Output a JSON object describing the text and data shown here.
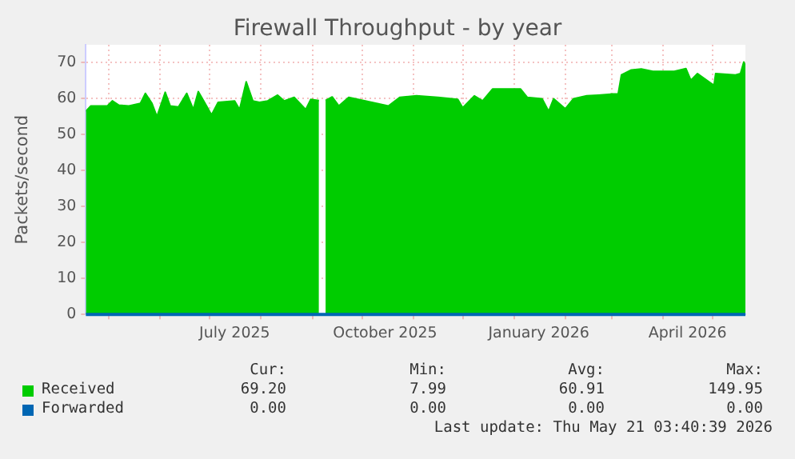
{
  "chart_data": {
    "type": "area",
    "title": "Firewall Throughput - by year",
    "ylabel": "Packets/second",
    "xlim": [
      "2025-04-17",
      "2026-05-21"
    ],
    "xticks": [
      {
        "value": "2025-05-01",
        "label": null
      },
      {
        "value": "2025-06-01",
        "label": null
      },
      {
        "value": "2025-07-01",
        "label": null
      },
      {
        "value": "2025-07-16",
        "label": "July 2025"
      },
      {
        "value": "2025-08-01",
        "label": null
      },
      {
        "value": "2025-09-01",
        "label": null
      },
      {
        "value": "2025-10-01",
        "label": null
      },
      {
        "value": "2025-10-15",
        "label": "October 2025"
      },
      {
        "value": "2025-11-01",
        "label": null
      },
      {
        "value": "2025-12-01",
        "label": null
      },
      {
        "value": "2026-01-01",
        "label": null
      },
      {
        "value": "2026-01-16",
        "label": "January 2026"
      },
      {
        "value": "2026-02-01",
        "label": null
      },
      {
        "value": "2026-03-01",
        "label": null
      },
      {
        "value": "2026-04-01",
        "label": null
      },
      {
        "value": "2026-04-16",
        "label": "April 2026"
      },
      {
        "value": "2026-05-01",
        "label": null
      }
    ],
    "ylim": [
      0,
      75
    ],
    "yticks": [
      0,
      10,
      20,
      30,
      40,
      50,
      60,
      70
    ],
    "grid": true,
    "legend": "bottom left",
    "series": [
      {
        "name": "Received",
        "color": "#00cc00",
        "x": [
          "2025-04-17",
          "2025-04-20",
          "2025-04-30",
          "2025-05-03",
          "2025-05-07",
          "2025-05-13",
          "2025-05-20",
          "2025-05-23",
          "2025-05-27",
          "2025-05-30",
          "2025-06-04",
          "2025-06-07",
          "2025-06-12",
          "2025-06-17",
          "2025-06-21",
          "2025-06-24",
          "2025-06-29",
          "2025-07-02",
          "2025-07-06",
          "2025-07-16",
          "2025-07-19",
          "2025-07-23",
          "2025-07-27",
          "2025-07-31",
          "2025-08-05",
          "2025-08-11",
          "2025-08-15",
          "2025-08-21",
          "2025-08-28",
          "2025-08-31",
          "2025-09-05",
          "2025-09-07",
          "2025-09-09",
          "2025-09-13",
          "2025-09-17",
          "2025-09-23",
          "2025-09-27",
          "2025-10-17",
          "2025-10-24",
          "2025-11-03",
          "2025-11-16",
          "2025-11-28",
          "2025-12-01",
          "2025-12-08",
          "2025-12-13",
          "2025-12-19",
          "2026-01-05",
          "2026-01-09",
          "2026-01-18",
          "2026-01-22",
          "2026-01-25",
          "2026-02-01",
          "2026-02-06",
          "2026-02-14",
          "2026-02-21",
          "2026-03-01",
          "2026-03-05",
          "2026-03-07",
          "2026-03-13",
          "2026-03-19",
          "2026-03-26",
          "2026-04-02",
          "2026-04-08",
          "2026-04-15",
          "2026-04-18",
          "2026-04-22",
          "2026-05-02",
          "2026-05-03",
          "2026-05-15",
          "2026-05-18",
          "2026-05-20",
          "2026-05-21"
        ],
        "values": [
          56.5,
          58,
          58,
          59.4,
          58.2,
          58,
          58.7,
          61.5,
          58.7,
          55,
          61.8,
          58,
          57.7,
          61.5,
          57,
          62,
          58,
          55.5,
          59,
          59.4,
          57,
          64.7,
          59.4,
          59,
          59.4,
          61,
          59.4,
          60.4,
          57,
          59.8,
          59.5,
          null,
          59.5,
          60.5,
          58,
          60.4,
          60,
          58,
          60.4,
          60.8,
          60.4,
          59.8,
          57.5,
          60.8,
          59.4,
          62.7,
          62.7,
          60.4,
          60,
          56.5,
          60,
          57.2,
          60,
          60.8,
          61,
          61.3,
          61.3,
          66.6,
          68,
          68.3,
          67.6,
          67.6,
          67.6,
          68.4,
          65.1,
          67,
          63.7,
          67,
          66.6,
          67,
          70.2,
          69.2
        ]
      },
      {
        "name": "Forwarded",
        "type": "line",
        "color": "#0066b3",
        "x": [
          "2025-04-17",
          "2026-05-21"
        ],
        "values": [
          0,
          0
        ]
      }
    ],
    "annotations": [
      "Cur:",
      "Min:",
      "Avg:",
      "Max:",
      "69.20",
      "7.99",
      "60.91",
      "149.95",
      "0.00",
      "0.00",
      "0.00",
      "0.00",
      "Last update: Thu May 21 03:40:39 2026"
    ]
  }
}
